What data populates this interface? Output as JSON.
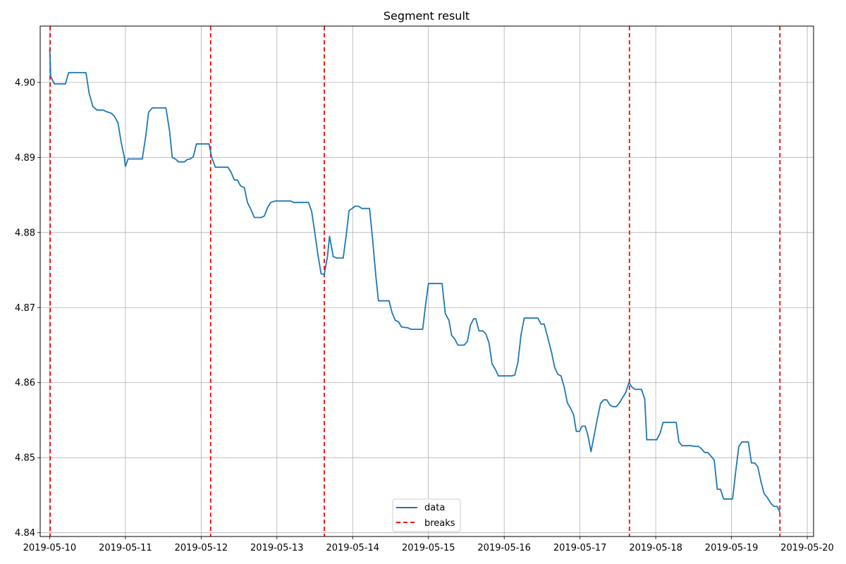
{
  "chart_data": {
    "type": "line",
    "title": "Segment result",
    "xlabel": "",
    "ylabel": "",
    "grid": true,
    "legend_placement": "lower center",
    "x_ticks": [
      "2019-05-10",
      "2019-05-11",
      "2019-05-12",
      "2019-05-13",
      "2019-05-14",
      "2019-05-15",
      "2019-05-16",
      "2019-05-17",
      "2019-05-18",
      "2019-05-19",
      "2019-05-20"
    ],
    "y_ticks": [
      "4.84",
      "4.85",
      "4.86",
      "4.87",
      "4.88",
      "4.89",
      "4.90"
    ],
    "xlim": [
      "2019-05-09T21:00",
      "2019-05-20T02:00"
    ],
    "ylim": [
      4.8395,
      4.9075
    ],
    "series": [
      {
        "name": "data",
        "color": "#1f77b4",
        "points": [
          [
            "2019-05-10T00:00",
            4.9045
          ],
          [
            "2019-05-10T00:10",
            4.903
          ],
          [
            "2019-05-10T00:20",
            4.9008
          ],
          [
            "2019-05-10T01:30",
            4.8998
          ],
          [
            "2019-05-10T05:00",
            4.8998
          ],
          [
            "2019-05-10T06:00",
            4.9013
          ],
          [
            "2019-05-10T11:30",
            4.9013
          ],
          [
            "2019-05-10T12:30",
            4.8986
          ],
          [
            "2019-05-10T13:40",
            4.8968
          ],
          [
            "2019-05-10T15:00",
            4.8963
          ],
          [
            "2019-05-10T17:00",
            4.8963
          ],
          [
            "2019-05-10T18:00",
            4.8961
          ],
          [
            "2019-05-10T19:30",
            4.8959
          ],
          [
            "2019-05-10T20:30",
            4.8955
          ],
          [
            "2019-05-10T21:40",
            4.8946
          ],
          [
            "2019-05-10T22:40",
            4.892
          ],
          [
            "2019-05-10T23:40",
            4.89
          ],
          [
            "2019-05-11T00:00",
            4.8888
          ],
          [
            "2019-05-11T00:50",
            4.8898
          ],
          [
            "2019-05-11T05:20",
            4.8898
          ],
          [
            "2019-05-11T06:30",
            4.893
          ],
          [
            "2019-05-11T07:20",
            4.896
          ],
          [
            "2019-05-11T08:30",
            4.8966
          ],
          [
            "2019-05-11T12:50",
            4.8966
          ],
          [
            "2019-05-11T14:00",
            4.8935
          ],
          [
            "2019-05-11T14:50",
            4.89
          ],
          [
            "2019-05-11T15:50",
            4.8898
          ],
          [
            "2019-05-11T16:50",
            4.8894
          ],
          [
            "2019-05-11T18:40",
            4.8894
          ],
          [
            "2019-05-11T19:30",
            4.8897
          ],
          [
            "2019-05-11T20:30",
            4.8898
          ],
          [
            "2019-05-11T21:30",
            4.8901
          ],
          [
            "2019-05-11T22:30",
            4.8918
          ],
          [
            "2019-05-12T02:30",
            4.8918
          ],
          [
            "2019-05-12T03:20",
            4.89
          ],
          [
            "2019-05-12T04:30",
            4.8887
          ],
          [
            "2019-05-12T08:30",
            4.8887
          ],
          [
            "2019-05-12T09:30",
            4.888
          ],
          [
            "2019-05-12T10:30",
            4.887
          ],
          [
            "2019-05-12T11:30",
            4.887
          ],
          [
            "2019-05-12T12:30",
            4.8862
          ],
          [
            "2019-05-12T13:40",
            4.886
          ],
          [
            "2019-05-12T14:40",
            4.884
          ],
          [
            "2019-05-12T15:50",
            4.883
          ],
          [
            "2019-05-12T16:50",
            4.882
          ],
          [
            "2019-05-12T19:00",
            4.882
          ],
          [
            "2019-05-12T20:00",
            4.8822
          ],
          [
            "2019-05-12T21:00",
            4.8833
          ],
          [
            "2019-05-12T22:00",
            4.884
          ],
          [
            "2019-05-12T23:30",
            4.8842
          ],
          [
            "2019-05-13T04:20",
            4.8842
          ],
          [
            "2019-05-13T05:20",
            4.884
          ],
          [
            "2019-05-13T10:00",
            4.884
          ],
          [
            "2019-05-13T11:00",
            4.8828
          ],
          [
            "2019-05-13T12:00",
            4.88
          ],
          [
            "2019-05-13T13:00",
            4.877
          ],
          [
            "2019-05-13T14:00",
            4.8745
          ],
          [
            "2019-05-13T15:00",
            4.8744
          ],
          [
            "2019-05-13T16:00",
            4.8768
          ],
          [
            "2019-05-13T16:40",
            4.8795
          ],
          [
            "2019-05-13T17:50",
            4.8768
          ],
          [
            "2019-05-13T19:00",
            4.8766
          ],
          [
            "2019-05-13T21:00",
            4.8766
          ],
          [
            "2019-05-13T22:00",
            4.8798
          ],
          [
            "2019-05-13T22:50",
            4.8829
          ],
          [
            "2019-05-13T23:50",
            4.8832
          ],
          [
            "2019-05-14T00:40",
            4.8835
          ],
          [
            "2019-05-14T01:50",
            4.8835
          ],
          [
            "2019-05-14T02:50",
            4.8832
          ],
          [
            "2019-05-14T05:20",
            4.8832
          ],
          [
            "2019-05-14T06:20",
            4.879
          ],
          [
            "2019-05-14T07:20",
            4.8742
          ],
          [
            "2019-05-14T08:10",
            4.8709
          ],
          [
            "2019-05-14T11:30",
            4.8709
          ],
          [
            "2019-05-14T12:30",
            4.8693
          ],
          [
            "2019-05-14T13:30",
            4.8683
          ],
          [
            "2019-05-14T14:30",
            4.8681
          ],
          [
            "2019-05-14T15:30",
            4.8674
          ],
          [
            "2019-05-14T17:30",
            4.8673
          ],
          [
            "2019-05-14T18:30",
            4.8671
          ],
          [
            "2019-05-14T22:10",
            4.8671
          ],
          [
            "2019-05-14T23:10",
            4.8706
          ],
          [
            "2019-05-15T00:00",
            4.8732
          ],
          [
            "2019-05-15T04:20",
            4.8732
          ],
          [
            "2019-05-15T05:20",
            4.8692
          ],
          [
            "2019-05-15T06:30",
            4.8683
          ],
          [
            "2019-05-15T07:20",
            4.8663
          ],
          [
            "2019-05-15T08:20",
            4.8658
          ],
          [
            "2019-05-15T09:20",
            4.865
          ],
          [
            "2019-05-15T11:20",
            4.865
          ],
          [
            "2019-05-15T12:20",
            4.8655
          ],
          [
            "2019-05-15T13:20",
            4.8677
          ],
          [
            "2019-05-15T14:20",
            4.8685
          ],
          [
            "2019-05-15T15:00",
            4.8685
          ],
          [
            "2019-05-15T16:00",
            4.8669
          ],
          [
            "2019-05-15T17:10",
            4.8669
          ],
          [
            "2019-05-15T18:10",
            4.8665
          ],
          [
            "2019-05-15T19:10",
            4.8653
          ],
          [
            "2019-05-15T20:10",
            4.8625
          ],
          [
            "2019-05-15T21:10",
            4.8618
          ],
          [
            "2019-05-15T22:10",
            4.8609
          ],
          [
            "2019-05-16T02:20",
            4.8609
          ],
          [
            "2019-05-16T03:20",
            4.861
          ],
          [
            "2019-05-16T04:20",
            4.8627
          ],
          [
            "2019-05-16T05:20",
            4.8664
          ],
          [
            "2019-05-16T06:20",
            4.8686
          ],
          [
            "2019-05-16T10:40",
            4.8686
          ],
          [
            "2019-05-16T11:40",
            4.8678
          ],
          [
            "2019-05-16T12:40",
            4.8678
          ],
          [
            "2019-05-16T13:40",
            4.8662
          ],
          [
            "2019-05-16T15:00",
            4.864
          ],
          [
            "2019-05-16T16:00",
            4.862
          ],
          [
            "2019-05-16T17:00",
            4.8611
          ],
          [
            "2019-05-16T18:00",
            4.8609
          ],
          [
            "2019-05-16T19:00",
            4.8594
          ],
          [
            "2019-05-16T20:00",
            4.8573
          ],
          [
            "2019-05-16T21:00",
            4.8566
          ],
          [
            "2019-05-16T22:00",
            4.8557
          ],
          [
            "2019-05-16T22:50",
            4.8535
          ],
          [
            "2019-05-16T23:50",
            4.8535
          ],
          [
            "2019-05-17T00:40",
            4.8542
          ],
          [
            "2019-05-17T01:40",
            4.8542
          ],
          [
            "2019-05-17T02:30",
            4.853
          ],
          [
            "2019-05-17T03:30",
            4.8508
          ],
          [
            "2019-05-17T04:30",
            4.853
          ],
          [
            "2019-05-17T05:30",
            4.8552
          ],
          [
            "2019-05-17T06:30",
            4.8572
          ],
          [
            "2019-05-17T07:30",
            4.8577
          ],
          [
            "2019-05-17T08:30",
            4.8577
          ],
          [
            "2019-05-17T09:30",
            4.857
          ],
          [
            "2019-05-17T10:30",
            4.8568
          ],
          [
            "2019-05-17T11:30",
            4.8568
          ],
          [
            "2019-05-17T12:30",
            4.8573
          ],
          [
            "2019-05-17T13:30",
            4.858
          ],
          [
            "2019-05-17T14:30",
            4.8587
          ],
          [
            "2019-05-17T15:30",
            4.86
          ],
          [
            "2019-05-17T16:30",
            4.8594
          ],
          [
            "2019-05-17T17:30",
            4.8591
          ],
          [
            "2019-05-17T19:30",
            4.8591
          ],
          [
            "2019-05-17T20:30",
            4.8578
          ],
          [
            "2019-05-17T21:10",
            4.8524
          ],
          [
            "2019-05-18T00:20",
            4.8524
          ],
          [
            "2019-05-18T01:20",
            4.8532
          ],
          [
            "2019-05-18T02:20",
            4.8547
          ],
          [
            "2019-05-18T06:30",
            4.8547
          ],
          [
            "2019-05-18T07:20",
            4.8521
          ],
          [
            "2019-05-18T08:20",
            4.8516
          ],
          [
            "2019-05-18T11:20",
            4.8516
          ],
          [
            "2019-05-18T12:20",
            4.8515
          ],
          [
            "2019-05-18T13:30",
            4.8515
          ],
          [
            "2019-05-18T14:30",
            4.8512
          ],
          [
            "2019-05-18T15:30",
            4.8507
          ],
          [
            "2019-05-18T16:30",
            4.8507
          ],
          [
            "2019-05-18T17:30",
            4.8502
          ],
          [
            "2019-05-18T18:30",
            4.8497
          ],
          [
            "2019-05-18T19:30",
            4.8458
          ],
          [
            "2019-05-18T20:30",
            4.8458
          ],
          [
            "2019-05-18T21:30",
            4.8445
          ],
          [
            "2019-05-19T00:20",
            4.8445
          ],
          [
            "2019-05-19T01:20",
            4.8482
          ],
          [
            "2019-05-19T02:20",
            4.8515
          ],
          [
            "2019-05-19T03:20",
            4.8521
          ],
          [
            "2019-05-19T05:20",
            4.8521
          ],
          [
            "2019-05-19T06:20",
            4.8493
          ],
          [
            "2019-05-19T07:20",
            4.8493
          ],
          [
            "2019-05-19T08:20",
            4.8488
          ],
          [
            "2019-05-19T09:20",
            4.8468
          ],
          [
            "2019-05-19T10:20",
            4.8452
          ],
          [
            "2019-05-19T11:20",
            4.8447
          ],
          [
            "2019-05-19T12:30",
            4.8439
          ],
          [
            "2019-05-19T13:30",
            4.8435
          ],
          [
            "2019-05-19T14:30",
            4.8435
          ],
          [
            "2019-05-19T15:20",
            4.8427
          ]
        ]
      },
      {
        "name": "breaks",
        "color": "#ff0000",
        "style": "dashed",
        "x": [
          "2019-05-10T00:10",
          "2019-05-12T03:00",
          "2019-05-13T15:00",
          "2019-05-17T15:40",
          "2019-05-19T15:20"
        ]
      }
    ]
  }
}
